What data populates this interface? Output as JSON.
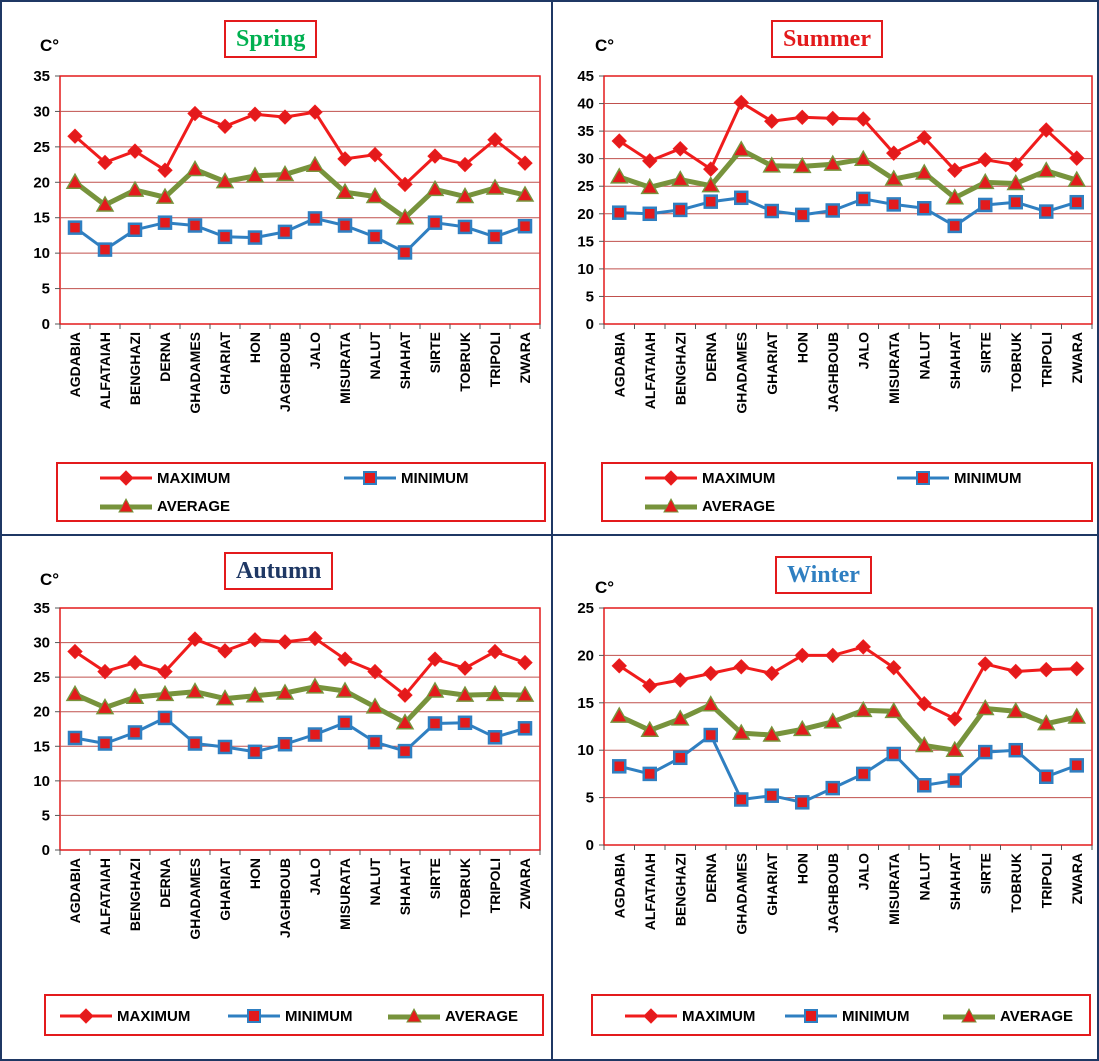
{
  "legend_labels": {
    "max": "MAXIMUM",
    "min": "MINIMUM",
    "avg": "AVERAGE"
  },
  "colors": {
    "max": "#f01c1c",
    "min": "#2f7fc1",
    "avg": "#77933c",
    "marker": "#e31a1c",
    "border": "#1f3864"
  },
  "chart_data": [
    {
      "type": "line",
      "title": "Spring",
      "title_color": "#00b050",
      "unit": "C°",
      "categories": [
        "AGDABIA",
        "ALFATAIAH",
        "BENGHAZI",
        "DERNA",
        "GHADAMES",
        "GHARIAT",
        "HON",
        "JAGHBOUB",
        "JALO",
        "MISURATA",
        "NALUT",
        "SHAHAT",
        "SIRTE",
        "TOBRUK",
        "TRIPOLI",
        "ZWARA"
      ],
      "ylim": [
        0,
        35
      ],
      "yticks": [
        0,
        5,
        10,
        15,
        20,
        25,
        30,
        35
      ],
      "grid": true,
      "legend_position": "bottom",
      "series": [
        {
          "name": "MAXIMUM",
          "values": [
            26.5,
            22.8,
            24.4,
            21.7,
            29.7,
            27.9,
            29.6,
            29.2,
            29.9,
            23.3,
            23.9,
            19.7,
            23.7,
            22.5,
            26.0,
            22.7
          ]
        },
        {
          "name": "MINIMUM",
          "values": [
            13.6,
            10.5,
            13.3,
            14.3,
            13.9,
            12.3,
            12.2,
            13.0,
            14.9,
            13.9,
            12.3,
            10.1,
            14.3,
            13.7,
            12.3,
            13.8
          ]
        },
        {
          "name": "AVERAGE",
          "values": [
            20.0,
            16.8,
            18.9,
            17.9,
            21.8,
            20.1,
            20.9,
            21.1,
            22.4,
            18.6,
            18.0,
            15.0,
            19.0,
            18.0,
            19.2,
            18.2
          ]
        }
      ]
    },
    {
      "type": "line",
      "title": "Summer",
      "title_color": "#e31a1c",
      "unit": "C°",
      "categories": [
        "AGDABIA",
        "ALFATAIAH",
        "BENGHAZI",
        "DERNA",
        "GHADAMES",
        "GHARIAT",
        "HON",
        "JAGHBOUB",
        "JALO",
        "MISURATA",
        "NALUT",
        "SHAHAT",
        "SIRTE",
        "TOBRUK",
        "TRIPOLI",
        "ZWARA"
      ],
      "ylim": [
        0,
        45
      ],
      "yticks": [
        0,
        5,
        10,
        15,
        20,
        25,
        30,
        35,
        40,
        45
      ],
      "grid": true,
      "legend_position": "bottom",
      "series": [
        {
          "name": "MAXIMUM",
          "values": [
            33.2,
            29.6,
            31.8,
            28.1,
            40.2,
            36.8,
            37.5,
            37.3,
            37.2,
            31.0,
            33.8,
            27.9,
            29.8,
            28.9,
            35.2,
            30.1
          ]
        },
        {
          "name": "MINIMUM",
          "values": [
            20.2,
            20.0,
            20.7,
            22.2,
            22.9,
            20.5,
            19.8,
            20.6,
            22.7,
            21.7,
            21.0,
            17.8,
            21.6,
            22.1,
            20.4,
            22.1
          ]
        },
        {
          "name": "AVERAGE",
          "values": [
            26.7,
            24.8,
            26.2,
            25.1,
            31.6,
            28.7,
            28.6,
            29.0,
            29.9,
            26.3,
            27.4,
            22.9,
            25.7,
            25.5,
            27.8,
            26.1
          ]
        }
      ]
    },
    {
      "type": "line",
      "title": "Autumn",
      "title_color": "#1f3864",
      "unit": "C°",
      "categories": [
        "AGDABIA",
        "ALFATAIAH",
        "BENGHAZI",
        "DERNA",
        "GHADAMES",
        "GHARIAT",
        "HON",
        "JAGHBOUB",
        "JALO",
        "MISURATA",
        "NALUT",
        "SHAHAT",
        "SIRTE",
        "TOBRUK",
        "TRIPOLI",
        "ZWARA"
      ],
      "ylim": [
        0,
        35
      ],
      "yticks": [
        0,
        5,
        10,
        15,
        20,
        25,
        30,
        35
      ],
      "grid": true,
      "legend_position": "bottom",
      "series": [
        {
          "name": "MAXIMUM",
          "values": [
            28.7,
            25.8,
            27.1,
            25.8,
            30.5,
            28.8,
            30.4,
            30.1,
            30.6,
            27.6,
            25.8,
            22.4,
            27.6,
            26.3,
            28.7,
            27.1
          ]
        },
        {
          "name": "MINIMUM",
          "values": [
            16.2,
            15.4,
            17.0,
            19.1,
            15.4,
            14.9,
            14.2,
            15.3,
            16.7,
            18.4,
            15.6,
            14.3,
            18.3,
            18.4,
            16.3,
            17.6
          ]
        },
        {
          "name": "AVERAGE",
          "values": [
            22.5,
            20.6,
            22.1,
            22.5,
            22.9,
            21.9,
            22.3,
            22.7,
            23.6,
            23.0,
            20.7,
            18.4,
            23.0,
            22.4,
            22.5,
            22.4
          ]
        }
      ]
    },
    {
      "type": "line",
      "title": "Winter",
      "title_color": "#2f7fc1",
      "unit": "C°",
      "categories": [
        "AGDABIA",
        "ALFATAIAH",
        "BENGHAZI",
        "DERNA",
        "GHADAMES",
        "GHARIAT",
        "HON",
        "JAGHBOUB",
        "JALO",
        "MISURATA",
        "NALUT",
        "SHAHAT",
        "SIRTE",
        "TOBRUK",
        "TRIPOLI",
        "ZWARA"
      ],
      "ylim": [
        0,
        25
      ],
      "yticks": [
        0,
        5,
        10,
        15,
        20,
        25
      ],
      "grid": true,
      "legend_position": "bottom",
      "series": [
        {
          "name": "MAXIMUM",
          "values": [
            18.9,
            16.8,
            17.4,
            18.1,
            18.8,
            18.1,
            20.0,
            20.0,
            20.9,
            18.7,
            14.9,
            13.3,
            19.1,
            18.3,
            18.5,
            18.6
          ]
        },
        {
          "name": "MINIMUM",
          "values": [
            8.3,
            7.5,
            9.2,
            11.6,
            4.8,
            5.2,
            4.5,
            6.0,
            7.5,
            9.6,
            6.3,
            6.8,
            9.8,
            10.0,
            7.2,
            8.4
          ]
        },
        {
          "name": "AVERAGE",
          "values": [
            13.6,
            12.1,
            13.3,
            14.8,
            11.8,
            11.6,
            12.2,
            13.0,
            14.2,
            14.1,
            10.5,
            10.0,
            14.4,
            14.1,
            12.8,
            13.5
          ]
        }
      ]
    }
  ]
}
